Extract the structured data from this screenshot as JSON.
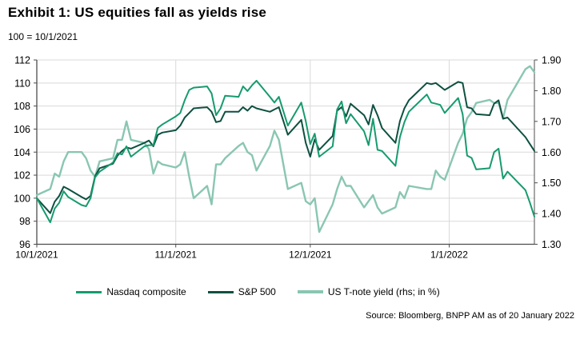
{
  "header": {
    "title": "Exhibit 1: US equities fall as yields rise",
    "subtitle": "100 = 10/1/2021"
  },
  "footer": {
    "source": "Source: Bloomberg, BNPP AM as of 20 January 2022"
  },
  "colors": {
    "background": "#ffffff",
    "grid": "#d9d9d9",
    "axis": "#4d4d4d",
    "text": "#000000",
    "nasdaq": "#169b6e",
    "sp500": "#0e5041",
    "tnote": "#8ac6b2"
  },
  "chart_data": {
    "type": "line",
    "title": "Exhibit 1: US equities fall as yields rise",
    "subtitle": "100 = 10/1/2021",
    "grid": true,
    "legend_position": "bottom",
    "x_start": "10/1/2021",
    "x_end": "1/20/2022",
    "x_ticks": [
      "10/1/2021",
      "11/1/2021",
      "12/1/2021",
      "1/1/2022"
    ],
    "x_tick_labels": [
      "10/1/2021",
      "11/1/2021",
      "12/1/2021",
      "1/1/2022"
    ],
    "left_axis": {
      "min": 96,
      "max": 112,
      "step": 2,
      "ticks": [
        96,
        98,
        100,
        102,
        104,
        106,
        108,
        110,
        112
      ]
    },
    "right_axis": {
      "min": 1.3,
      "max": 1.9,
      "step": 0.1,
      "ticks": [
        "1.30",
        "1.40",
        "1.50",
        "1.60",
        "1.70",
        "1.80",
        "1.90"
      ],
      "label": "US T-note yield (rhs; in %)"
    },
    "dates": [
      "10/1/2021",
      "10/4/2021",
      "10/5/2021",
      "10/6/2021",
      "10/7/2021",
      "10/8/2021",
      "10/11/2021",
      "10/12/2021",
      "10/13/2021",
      "10/14/2021",
      "10/15/2021",
      "10/18/2021",
      "10/19/2021",
      "10/20/2021",
      "10/21/2021",
      "10/22/2021",
      "10/25/2021",
      "10/26/2021",
      "10/27/2021",
      "10/28/2021",
      "10/29/2021",
      "11/1/2021",
      "11/2/2021",
      "11/3/2021",
      "11/4/2021",
      "11/5/2021",
      "11/8/2021",
      "11/9/2021",
      "11/10/2021",
      "11/11/2021",
      "11/12/2021",
      "11/15/2021",
      "11/16/2021",
      "11/17/2021",
      "11/18/2021",
      "11/19/2021",
      "11/22/2021",
      "11/23/2021",
      "11/24/2021",
      "11/26/2021",
      "11/29/2021",
      "11/30/2021",
      "12/1/2021",
      "12/2/2021",
      "12/3/2021",
      "12/6/2021",
      "12/7/2021",
      "12/8/2021",
      "12/9/2021",
      "12/10/2021",
      "12/13/2021",
      "12/14/2021",
      "12/15/2021",
      "12/16/2021",
      "12/17/2021",
      "12/20/2021",
      "12/21/2021",
      "12/22/2021",
      "12/23/2021",
      "12/27/2021",
      "12/28/2021",
      "12/29/2021",
      "12/30/2021",
      "12/31/2021",
      "1/3/2022",
      "1/4/2022",
      "1/5/2022",
      "1/6/2022",
      "1/7/2022",
      "1/10/2022",
      "1/11/2022",
      "1/12/2022",
      "1/13/2022",
      "1/14/2022",
      "1/18/2022",
      "1/19/2022",
      "1/20/2022"
    ],
    "series": [
      {
        "name": "Nasdaq composite",
        "axis": "left",
        "color": "#169b6e",
        "width": 2,
        "values": [
          100.0,
          97.9,
          99.1,
          99.6,
          100.6,
          100.1,
          99.4,
          99.3,
          100.0,
          101.8,
          102.3,
          103.1,
          103.9,
          103.8,
          104.5,
          103.6,
          104.5,
          104.6,
          104.6,
          106.1,
          106.4,
          107.1,
          107.4,
          108.5,
          109.4,
          109.6,
          109.7,
          109.1,
          107.2,
          107.8,
          108.9,
          108.8,
          109.7,
          109.3,
          109.8,
          110.2,
          108.8,
          108.3,
          108.8,
          106.3,
          108.3,
          106.7,
          104.7,
          105.6,
          103.6,
          104.5,
          107.7,
          108.4,
          106.5,
          107.3,
          105.8,
          104.6,
          106.9,
          104.2,
          104.1,
          102.8,
          105.3,
          106.6,
          107.5,
          109.0,
          108.3,
          108.2,
          108.1,
          107.4,
          108.7,
          107.3,
          103.7,
          103.5,
          102.5,
          102.6,
          104.0,
          104.3,
          101.7,
          102.3,
          100.7,
          99.6,
          98.4
        ]
      },
      {
        "name": "S&P 500",
        "axis": "left",
        "color": "#0e5041",
        "width": 2,
        "values": [
          100.0,
          98.7,
          99.7,
          100.2,
          101.0,
          100.8,
          100.1,
          99.9,
          100.2,
          101.9,
          102.6,
          103.0,
          103.7,
          104.1,
          104.4,
          104.3,
          104.8,
          105.0,
          104.5,
          105.5,
          105.7,
          105.9,
          106.3,
          107.0,
          107.4,
          107.8,
          107.9,
          107.5,
          106.6,
          106.7,
          107.5,
          107.5,
          107.9,
          107.6,
          108.0,
          107.8,
          107.5,
          107.7,
          107.9,
          105.5,
          106.8,
          104.8,
          103.6,
          105.1,
          104.2,
          105.4,
          107.6,
          107.9,
          107.1,
          108.2,
          107.2,
          106.4,
          108.1,
          107.2,
          106.1,
          104.8,
          106.7,
          107.8,
          108.5,
          110.0,
          109.9,
          110.0,
          109.7,
          109.4,
          110.1,
          110.0,
          107.9,
          107.8,
          107.3,
          107.2,
          108.2,
          108.5,
          106.9,
          107.0,
          105.3,
          104.7,
          104.1
        ]
      },
      {
        "name": "US T-note yield (rhs; in %)",
        "axis": "right",
        "color": "#8ac6b2",
        "width": 2.4,
        "values": [
          1.46,
          1.48,
          1.53,
          1.52,
          1.57,
          1.6,
          1.6,
          1.58,
          1.54,
          1.52,
          1.57,
          1.58,
          1.64,
          1.64,
          1.7,
          1.64,
          1.63,
          1.61,
          1.53,
          1.57,
          1.56,
          1.55,
          1.56,
          1.6,
          1.52,
          1.45,
          1.49,
          1.43,
          1.56,
          1.56,
          1.58,
          1.62,
          1.63,
          1.6,
          1.59,
          1.54,
          1.62,
          1.67,
          1.64,
          1.48,
          1.5,
          1.44,
          1.43,
          1.45,
          1.34,
          1.43,
          1.48,
          1.52,
          1.49,
          1.49,
          1.42,
          1.44,
          1.46,
          1.42,
          1.4,
          1.42,
          1.47,
          1.45,
          1.49,
          1.48,
          1.48,
          1.54,
          1.52,
          1.51,
          1.63,
          1.66,
          1.71,
          1.73,
          1.76,
          1.77,
          1.76,
          1.76,
          1.71,
          1.77,
          1.87,
          1.88,
          1.86
        ]
      }
    ]
  }
}
